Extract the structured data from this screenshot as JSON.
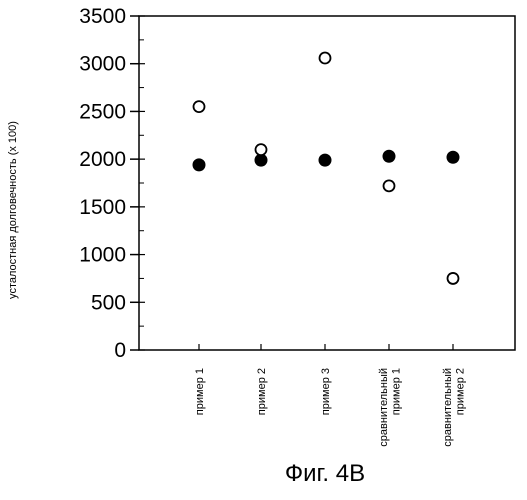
{
  "chart_data": {
    "type": "scatter",
    "categories": [
      "пример 1",
      "пример 2",
      "пример 3",
      "сравнительный пример 1",
      "сравнительный пример 2"
    ],
    "series": [
      {
        "marker": "filled-circle",
        "color": "#000000",
        "values": [
          1940,
          1990,
          1990,
          2030,
          2020
        ]
      },
      {
        "marker": "open-circle",
        "color": "#000000",
        "values": [
          2550,
          2100,
          3060,
          1720,
          750
        ]
      }
    ],
    "ylabel": "усталостная долговечность (x 100)",
    "ylim": [
      0,
      3500
    ],
    "yticks": [
      "0",
      "500",
      "1000",
      "1500",
      "2000",
      "2500",
      "3000",
      "3500"
    ],
    "grid": false,
    "caption": "Фиг. 4В"
  }
}
